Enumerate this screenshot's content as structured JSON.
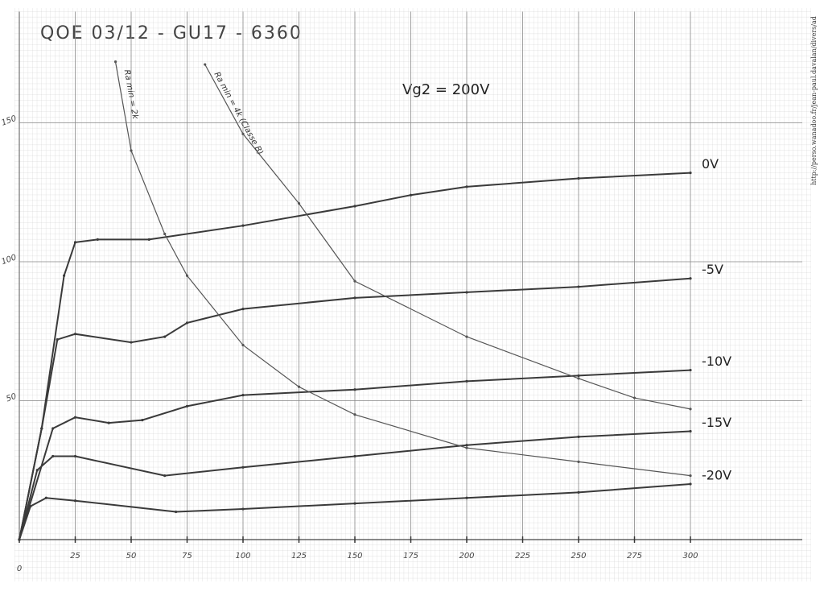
{
  "chart_data": {
    "type": "line",
    "title": "QOE 03/12 - GU17 - 6360",
    "subtitle": "Vg2 = 200V",
    "source": "http://perso.wanadoo.fr/jean-paul.davalan/divers/ad",
    "xlim": [
      0,
      350
    ],
    "ylim": [
      0,
      190
    ],
    "xticks": [
      0,
      25,
      50,
      75,
      100,
      125,
      150,
      175,
      200,
      225,
      250,
      275,
      300
    ],
    "yticks": [
      50,
      100,
      150
    ],
    "grid": true,
    "series": [
      {
        "name": "0V",
        "color": "#3a3a3a",
        "x": [
          0,
          10,
          20,
          25,
          35,
          58,
          100,
          150,
          175,
          200,
          250,
          300
        ],
        "values": [
          0,
          40,
          95,
          107,
          108,
          108,
          113,
          120,
          124,
          127,
          130,
          132
        ]
      },
      {
        "name": "-5V",
        "color": "#3a3a3a",
        "x": [
          0,
          10,
          17,
          25,
          50,
          65,
          75,
          100,
          150,
          200,
          250,
          300
        ],
        "values": [
          0,
          40,
          72,
          74,
          71,
          73,
          78,
          83,
          87,
          89,
          91,
          94
        ]
      },
      {
        "name": "-10V",
        "color": "#3a3a3a",
        "x": [
          0,
          15,
          25,
          40,
          55,
          75,
          100,
          150,
          200,
          250,
          300
        ],
        "values": [
          0,
          40,
          44,
          42,
          43,
          48,
          52,
          54,
          57,
          59,
          61
        ]
      },
      {
        "name": "-15V",
        "color": "#3a3a3a",
        "x": [
          0,
          8,
          15,
          25,
          65,
          100,
          150,
          200,
          250,
          300
        ],
        "values": [
          0,
          25,
          30,
          30,
          23,
          26,
          30,
          34,
          37,
          39
        ]
      },
      {
        "name": "-20V",
        "color": "#3a3a3a",
        "x": [
          0,
          5,
          12,
          25,
          70,
          100,
          150,
          200,
          250,
          300
        ],
        "values": [
          0,
          12,
          15,
          14,
          10,
          11,
          13,
          15,
          17,
          20
        ]
      },
      {
        "name": "Ra min = 2k",
        "color": "#555555",
        "x": [
          43,
          50,
          65,
          75,
          100,
          125,
          150,
          200,
          250,
          300
        ],
        "values": [
          172,
          140,
          110,
          95,
          70,
          55,
          45,
          33,
          28,
          23
        ]
      },
      {
        "name": "Ra min = 4k (Classe B)",
        "color": "#555555",
        "x": [
          83,
          100,
          125,
          150,
          200,
          250,
          275,
          300
        ],
        "values": [
          171,
          146,
          121,
          93,
          73,
          58,
          51,
          47
        ]
      }
    ]
  }
}
